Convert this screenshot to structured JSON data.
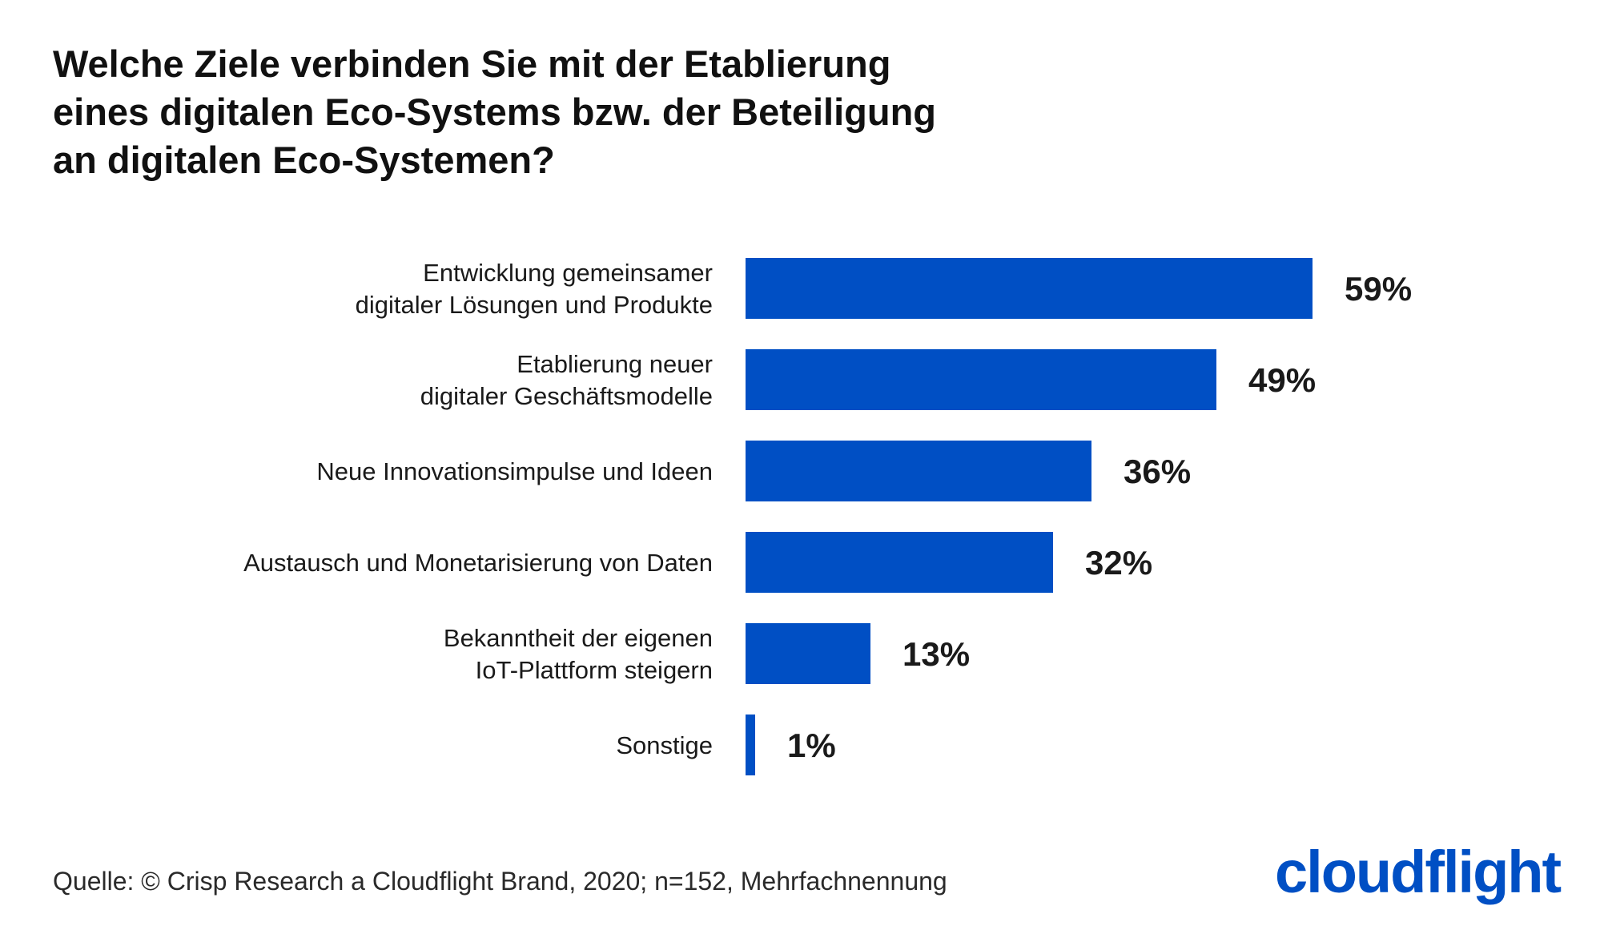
{
  "title_lines": [
    "Welche Ziele verbinden Sie mit der Etablierung",
    "eines digitalen Eco-Systems bzw. der Beteiligung",
    "an digitalen Eco-Systemen?"
  ],
  "source": "Quelle: © Crisp Research a Cloudflight Brand, 2020; n=152, Mehrfachnennung",
  "logo": {
    "text": "cloudflight",
    "color": "#004fc4"
  },
  "chart_data": {
    "type": "bar",
    "orientation": "horizontal",
    "categories": [
      [
        "Entwicklung gemeinsamer",
        "digitaler Lösungen und Produkte"
      ],
      [
        "Etablierung neuer",
        "digitaler Geschäftsmodelle"
      ],
      [
        "Neue Innovationsimpulse und Ideen"
      ],
      [
        "Austausch und Monetarisierung von Daten"
      ],
      [
        "Bekanntheit der eigenen",
        "IoT-Plattform steigern"
      ],
      [
        "Sonstige"
      ]
    ],
    "values": [
      59,
      49,
      36,
      32,
      13,
      1
    ],
    "value_labels": [
      "59%",
      "49%",
      "36%",
      "32%",
      "13%",
      "1%"
    ],
    "unit": "%",
    "bar_color": "#004fc4",
    "grid": false,
    "legend": "none"
  }
}
